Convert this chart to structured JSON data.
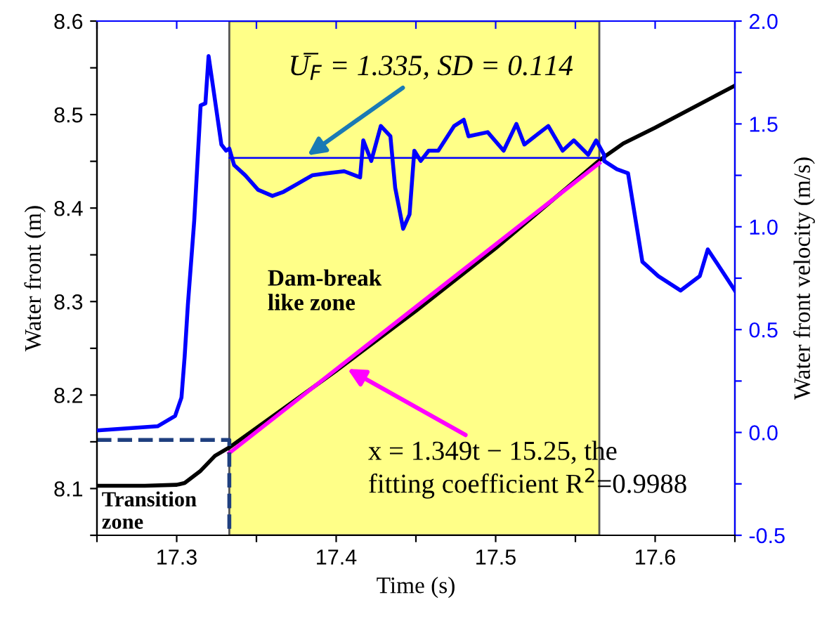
{
  "chart_data": {
    "type": "line",
    "xlabel": "Time (s)",
    "ylabel": "Water front (m)",
    "y2label": "Water front velocity (m/s)",
    "xlim": [
      17.25,
      17.65
    ],
    "ylim": [
      8.05,
      8.6
    ],
    "y2lim": [
      -0.5,
      2.0
    ],
    "xticks": [
      {
        "value": 17.25,
        "label": null
      },
      17.3,
      {
        "value": 17.35,
        "label": null
      },
      17.4,
      {
        "value": 17.45,
        "label": null
      },
      17.5,
      {
        "value": 17.55,
        "label": null
      },
      17.6,
      {
        "value": 17.65,
        "label": null
      }
    ],
    "yticks": [
      {
        "value": 8.05,
        "label": null
      },
      8.1,
      {
        "value": 8.15,
        "label": null
      },
      8.2,
      {
        "value": 8.25,
        "label": null
      },
      8.3,
      {
        "value": 8.35,
        "label": null
      },
      8.4,
      {
        "value": 8.45,
        "label": null
      },
      8.5,
      {
        "value": 8.55,
        "label": null
      },
      8.6
    ],
    "y2ticks": [
      {
        "value": -0.5,
        "label": "-0.5"
      },
      {
        "value": -0.25,
        "label": null
      },
      {
        "value": 0.0,
        "label": "0.0"
      },
      {
        "value": 0.25,
        "label": null
      },
      {
        "value": 0.5,
        "label": "0.5"
      },
      {
        "value": 0.75,
        "label": null
      },
      {
        "value": 1.0,
        "label": "1.0"
      },
      {
        "value": 1.25,
        "label": null
      },
      {
        "value": 1.5,
        "label": "1.5"
      },
      {
        "value": 1.75,
        "label": null
      },
      {
        "value": 2.0,
        "label": "2.0"
      }
    ],
    "grid": false,
    "legend": false,
    "marker": "none",
    "bands": [
      {
        "axis": "x",
        "from": 17.333,
        "to": 17.565,
        "color": "#ffff88"
      }
    ],
    "series": [
      {
        "color": "#000000",
        "x": [
          17.25,
          17.28,
          17.3,
          17.305,
          17.315,
          17.324,
          17.333,
          17.4,
          17.45,
          17.5,
          17.565,
          17.58,
          17.6,
          17.65
        ],
        "values": [
          8.103,
          8.103,
          8.104,
          8.106,
          8.119,
          8.135,
          8.144,
          8.226,
          8.29,
          8.357,
          8.451,
          8.469,
          8.486,
          8.531
        ]
      },
      {
        "color": "#ff00ff",
        "x": [
          17.333,
          17.565
        ],
        "values": [
          8.138,
          8.448
        ]
      },
      {
        "color": "#0000ff",
        "axis": "y2",
        "x": [
          17.25,
          17.288,
          17.299,
          17.303,
          17.305,
          17.307,
          17.311,
          17.315,
          17.318,
          17.32,
          17.323,
          17.328,
          17.331,
          17.333,
          17.336,
          17.343,
          17.351,
          17.36,
          17.367,
          17.376,
          17.385,
          17.394,
          17.405,
          17.415,
          17.417,
          17.418,
          17.422,
          17.428,
          17.434,
          17.437,
          17.442,
          17.446,
          17.449,
          17.453,
          17.458,
          17.463,
          17.464,
          17.474,
          17.48,
          17.483,
          17.495,
          17.505,
          17.513,
          17.518,
          17.533,
          17.542,
          17.549,
          17.558,
          17.563,
          17.568,
          17.568,
          17.576,
          17.583,
          17.592,
          17.602,
          17.616,
          17.628,
          17.633,
          17.639,
          17.65
        ],
        "values": [
          0.01,
          0.03,
          0.08,
          0.17,
          0.37,
          0.62,
          1.03,
          1.59,
          1.6,
          1.83,
          1.67,
          1.4,
          1.37,
          1.38,
          1.3,
          1.25,
          1.18,
          1.15,
          1.17,
          1.21,
          1.25,
          1.26,
          1.27,
          1.24,
          1.42,
          1.4,
          1.32,
          1.49,
          1.44,
          1.19,
          0.99,
          1.06,
          1.37,
          1.32,
          1.37,
          1.37,
          1.37,
          1.49,
          1.52,
          1.44,
          1.46,
          1.37,
          1.5,
          1.4,
          1.49,
          1.37,
          1.42,
          1.35,
          1.42,
          1.35,
          1.32,
          1.28,
          1.26,
          0.83,
          0.76,
          0.69,
          0.76,
          0.89,
          0.82,
          0.69
        ]
      },
      {
        "color": "#0000ff",
        "axis": "y2",
        "x": [
          17.333,
          17.565
        ],
        "values": [
          1.335,
          1.335
        ]
      },
      {
        "color": "#1f3f7f",
        "line_style": "dashed",
        "x": [
          17.25,
          17.333,
          17.333
        ],
        "values": [
          8.152,
          8.152,
          8.05
        ]
      }
    ],
    "annotations": [
      {
        "text": "U̅$_{F}$ = 1.335, SD = 0.114",
        "x": 17.38,
        "y": 8.454
      },
      {
        "text": "x = 1.349t − 15.25, the\nfitting coefficient R$^{2}$=0.9988",
        "x": 17.405,
        "y": 8.23
      },
      "Dam-break\nlike zone",
      "Transition\nzone"
    ]
  }
}
